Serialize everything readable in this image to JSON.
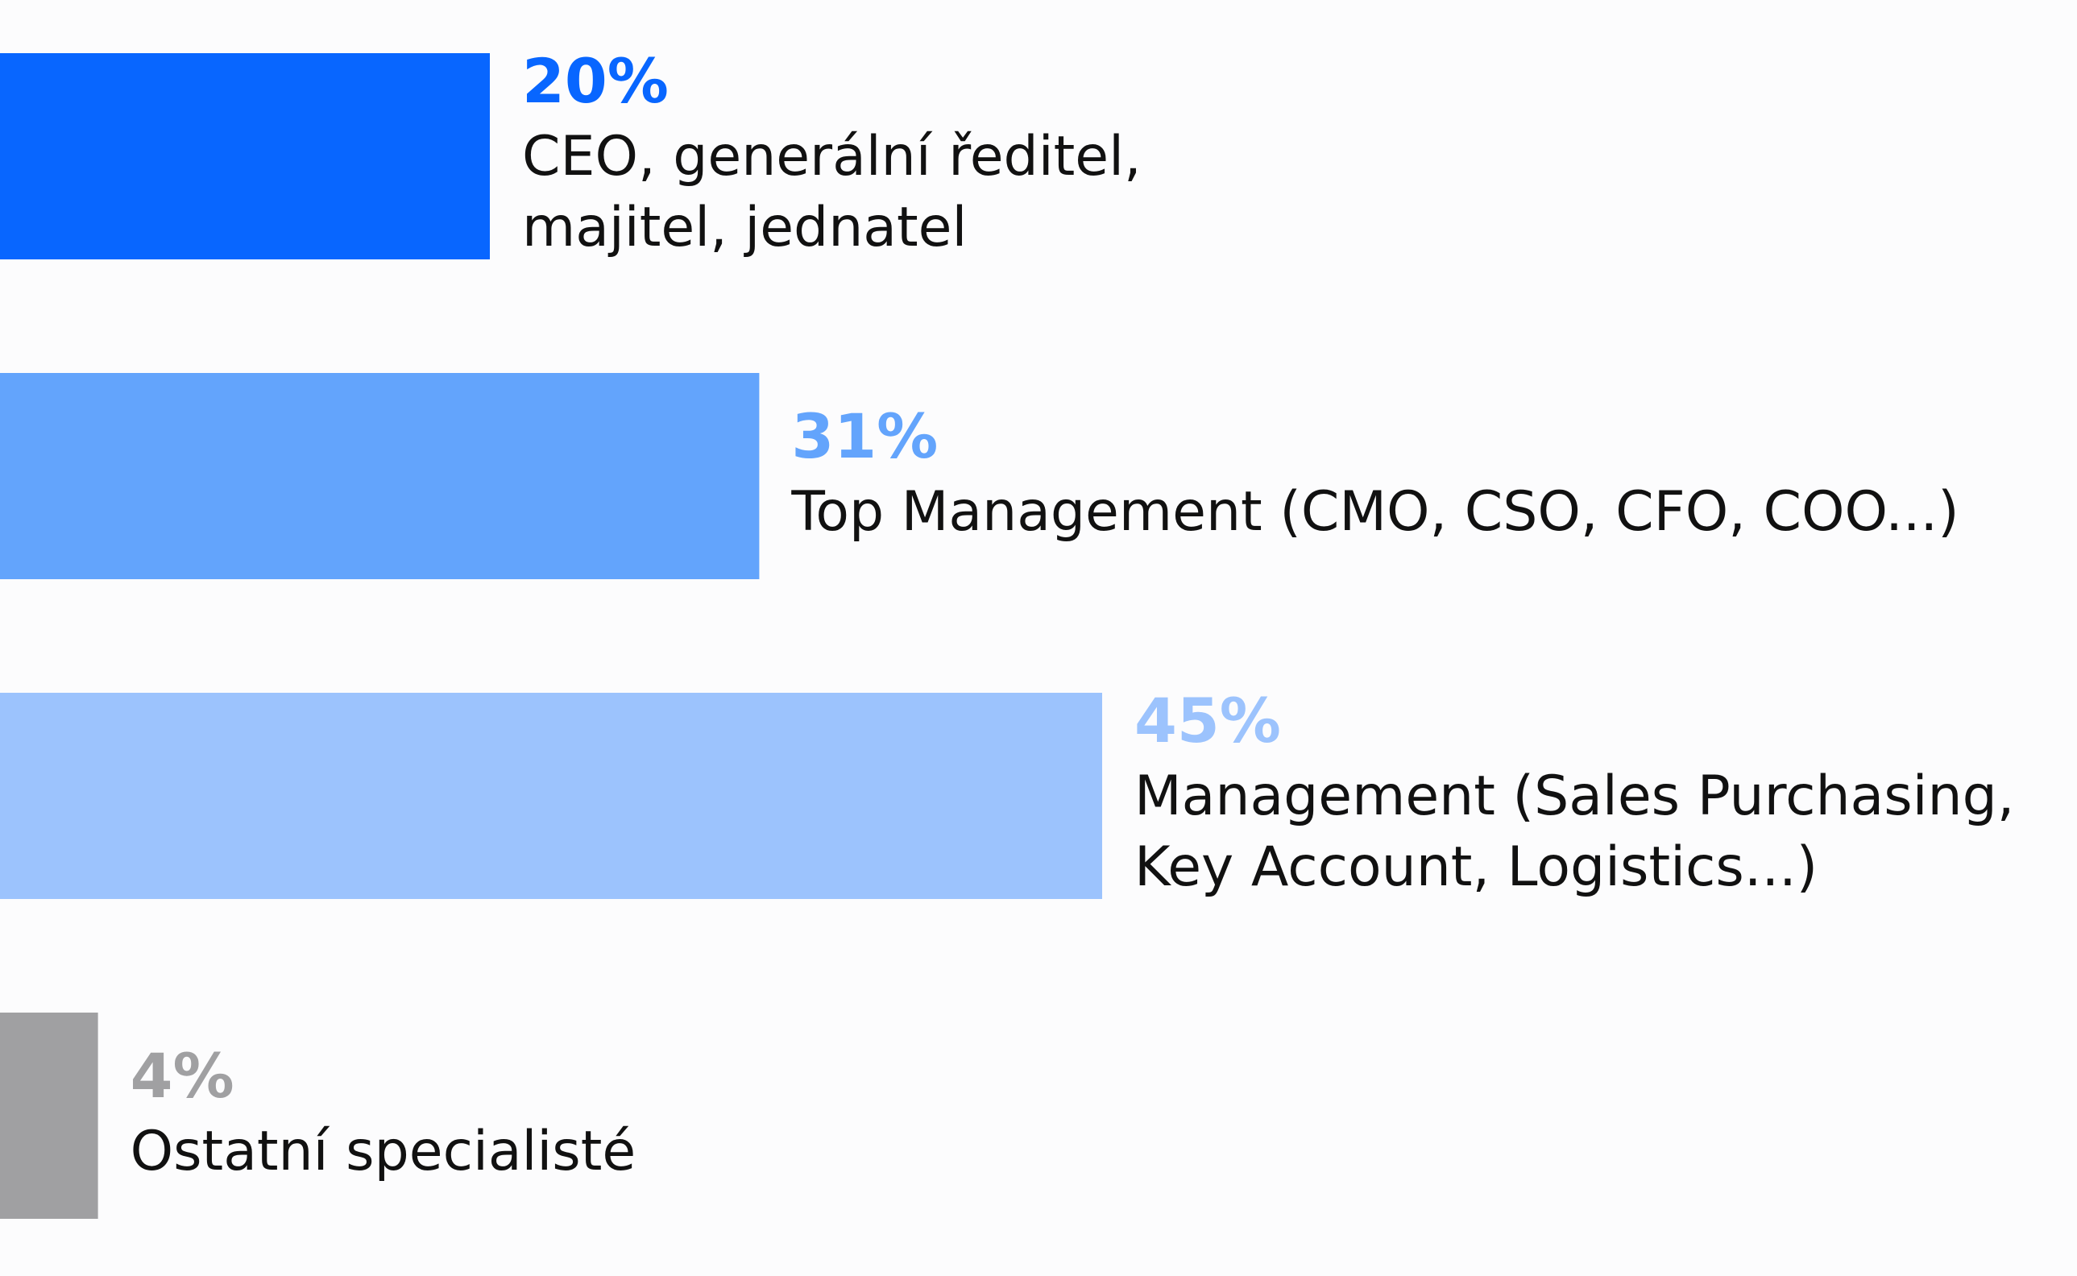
{
  "chart_data": {
    "type": "bar",
    "orientation": "horizontal",
    "title": "",
    "xlabel": "",
    "ylabel": "",
    "xlim": [
      0,
      100
    ],
    "grid": false,
    "legend": "none",
    "categories": [
      {
        "id": "ceo",
        "value": 20,
        "value_label": "20%",
        "label_lines": [
          "CEO, generální ředitel,",
          "majitel, jednatel"
        ],
        "color": "#0866FF"
      },
      {
        "id": "top-management",
        "value": 31,
        "value_label": "31%",
        "label_lines": [
          "Top Management (CMO, CSO, CFO, COO...)"
        ],
        "color": "#63A4FC"
      },
      {
        "id": "management",
        "value": 45,
        "value_label": "45%",
        "label_lines": [
          "Management (Sales Purchasing,",
          "Key Account, Logistics...)"
        ],
        "color": "#9CC3FD"
      },
      {
        "id": "other",
        "value": 4,
        "value_label": "4%",
        "label_lines": [
          "Ostatní specialisté"
        ],
        "color": "#A0A0A2"
      }
    ]
  }
}
